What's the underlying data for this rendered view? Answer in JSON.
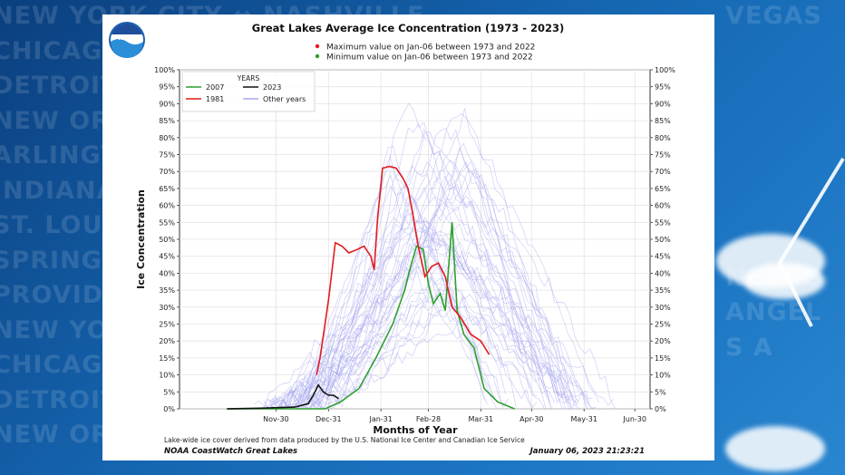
{
  "background": {
    "cities": [
      "NEW YORK CITY ⇔ NASHVILLE",
      "CHICAGO",
      "DETROIT",
      "NEW ORLEANS",
      "ARLINGTON",
      "INDIANAPOLIS",
      "ST. LOUIS",
      "SPRINGFIELD",
      "PROVIDENCE",
      "NEW YORK",
      "CHICAGO",
      "DETROIT",
      "NEW ORLEANS"
    ],
    "right_words": [
      "VEGAS",
      "NEW O",
      "ANGEL",
      "S A"
    ],
    "colors": {
      "dark": "#0b3f7e",
      "light": "#2a86d0"
    }
  },
  "logo": {
    "text": "NOAA"
  },
  "chart_data": {
    "type": "line",
    "title": "Great Lakes Average Ice Concentration (1973 - 2023)",
    "annotations": [
      {
        "text": "Maximum value on Jan-06 between 1973 and 2022",
        "color": "#e31a1c"
      },
      {
        "text": "Minimum  value on Jan-06 between 1973 and 2022",
        "color": "#2ca02c"
      }
    ],
    "xlabel": "Months of Year",
    "ylabel": "Ice Concentration",
    "x_unit": "days since Nov-1",
    "xlim": [
      -28,
      250
    ],
    "ylim": [
      0,
      100
    ],
    "x_ticks": [
      {
        "label": "Nov-30",
        "x": 29
      },
      {
        "label": "Dec-31",
        "x": 60
      },
      {
        "label": "Jan-31",
        "x": 91
      },
      {
        "label": "Feb-28",
        "x": 119
      },
      {
        "label": "Mar-31",
        "x": 150
      },
      {
        "label": "Apr-30",
        "x": 180
      },
      {
        "label": "May-31",
        "x": 211
      },
      {
        "label": "Jun-30",
        "x": 241
      }
    ],
    "y_ticks": [
      "0%",
      "5%",
      "10%",
      "15%",
      "20%",
      "25%",
      "30%",
      "35%",
      "40%",
      "45%",
      "50%",
      "55%",
      "60%",
      "65%",
      "70%",
      "75%",
      "80%",
      "85%",
      "90%",
      "95%",
      "100%"
    ],
    "legend_title": "YEARS",
    "series": [
      {
        "name": "2007",
        "color": "#2ca02c",
        "x": [
          0,
          20,
          45,
          58,
          67,
          78,
          88,
          98,
          105,
          108,
          112,
          116,
          119,
          122,
          126,
          129,
          133,
          136,
          140,
          146,
          152,
          160,
          170
        ],
        "y": [
          0,
          0,
          0,
          0,
          2,
          6,
          15,
          25,
          35,
          41,
          48,
          47,
          37,
          31,
          34,
          29,
          55,
          29,
          22,
          18,
          6,
          2,
          0
        ]
      },
      {
        "name": "1981",
        "color": "#e31a1c",
        "x": [
          53,
          55,
          60,
          64,
          68,
          72,
          77,
          81,
          85,
          87,
          89,
          92,
          96,
          100,
          104,
          107,
          110,
          113,
          117,
          121,
          125,
          129,
          133,
          138,
          144,
          150,
          155
        ],
        "y": [
          10,
          15,
          32,
          49,
          48,
          46,
          47,
          48,
          45,
          41,
          56,
          71,
          71.5,
          71,
          68,
          65,
          57,
          48,
          39,
          42,
          43,
          39,
          30,
          27,
          22,
          20,
          16
        ]
      },
      {
        "name": "2023",
        "color": "#111111",
        "x": [
          0,
          20,
          40,
          48,
          51,
          54,
          57,
          60,
          63,
          66
        ],
        "y": [
          0,
          0.2,
          0.5,
          1.5,
          4,
          7,
          5,
          4,
          4,
          3
        ]
      },
      {
        "name": "Other years",
        "color": "#a8a8f0"
      }
    ]
  },
  "footer": {
    "note": "Lake-wide ice cover derived from data produced by the U.S. National Ice Center and Canadian Ice Service",
    "source": "NOAA CoastWatch Great Lakes",
    "date": "January 06, 2023 21:23:21"
  }
}
